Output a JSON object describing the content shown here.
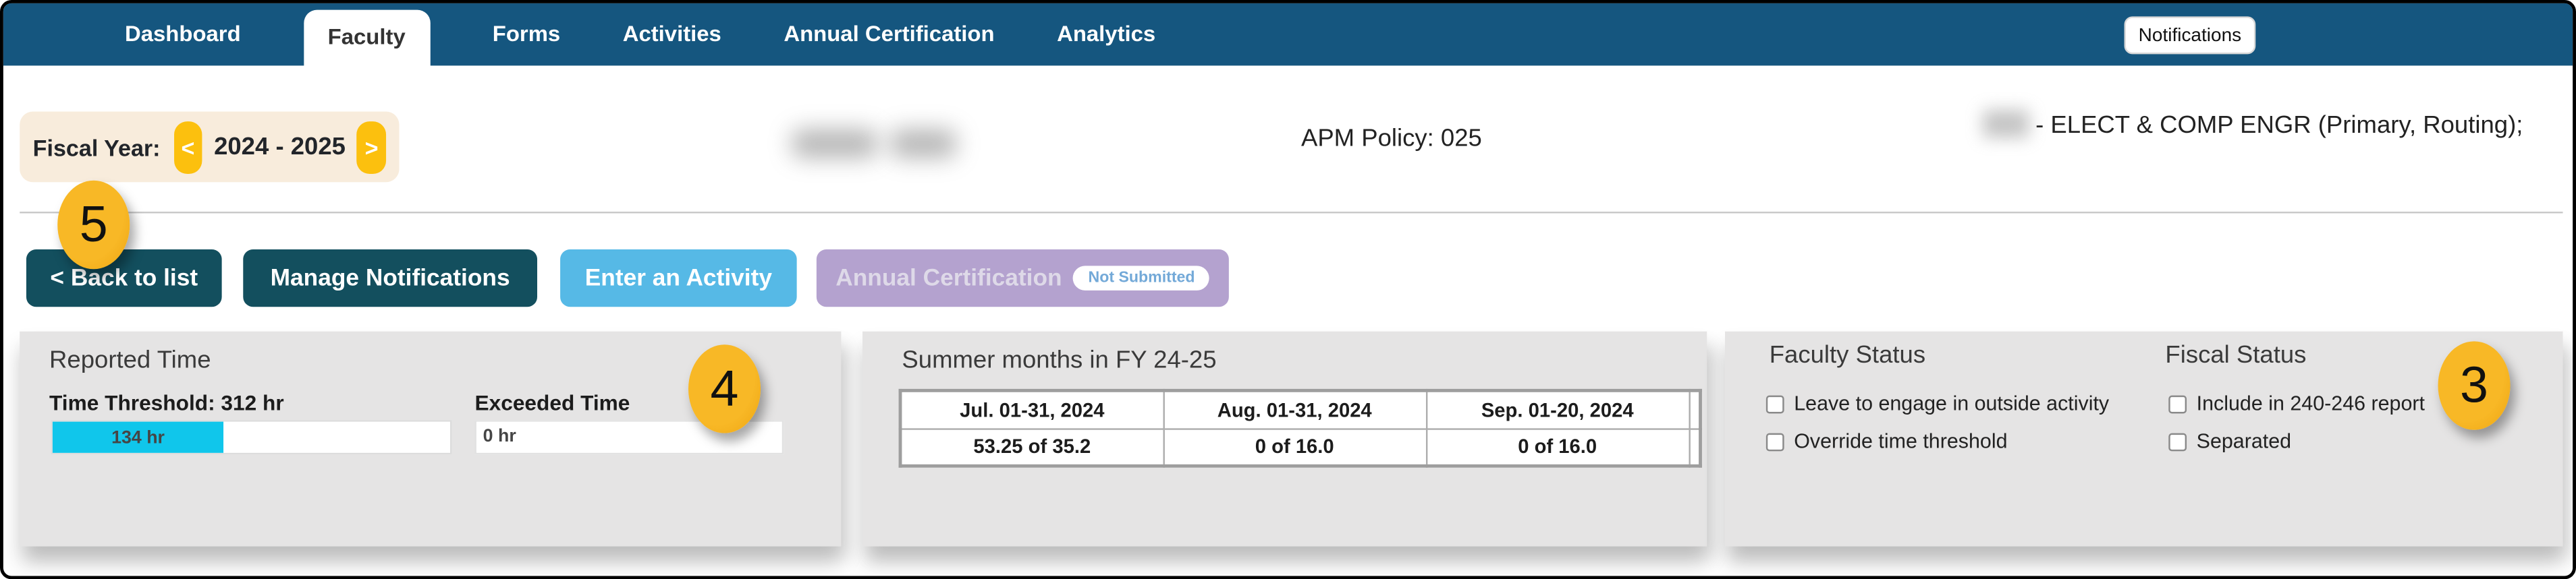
{
  "nav": {
    "tabs": [
      {
        "label": "Dashboard",
        "active": false
      },
      {
        "label": "Faculty",
        "active": true
      },
      {
        "label": "Forms",
        "active": false
      },
      {
        "label": "Activities",
        "active": false
      },
      {
        "label": "Annual Certification",
        "active": false
      },
      {
        "label": "Analytics",
        "active": false
      }
    ],
    "notifications_label": "Notifications"
  },
  "header": {
    "fiscal_year_label": "Fiscal Year:",
    "fiscal_year_prev": "<",
    "fiscal_year_value": "2024 - 2025",
    "fiscal_year_next": ">",
    "name_redacted": true,
    "apm_policy": "APM Policy: 025",
    "department_redacted_prefix": true,
    "department": "- ELECT & COMP ENGR (Primary, Routing);"
  },
  "actions": {
    "back_label": "< Back to list",
    "manage_notifications_label": "Manage Notifications",
    "enter_activity_label": "Enter an Activity",
    "annual_certification_label": "Annual Certification",
    "annual_certification_status": "Not Submitted"
  },
  "annotations": {
    "back_button_badge": "5",
    "reported_time_badge": "4",
    "status_panel_badge": "3"
  },
  "reported_time": {
    "title": "Reported Time",
    "threshold_label": "Time Threshold: 312 hr",
    "exceeded_label": "Exceeded Time",
    "bar_value": "134 hr",
    "bar_percent": 43,
    "exceeded_value": "0 hr"
  },
  "summer": {
    "title": "Summer months in FY 24-25",
    "columns": [
      "Jul. 01-31, 2024",
      "Aug. 01-31, 2024",
      "Sep. 01-20, 2024"
    ],
    "values": [
      "53.25 of 35.2",
      "0 of 16.0",
      "0 of 16.0"
    ]
  },
  "status": {
    "faculty_title": "Faculty Status",
    "fiscal_title": "Fiscal Status",
    "faculty_options": [
      {
        "label": "Leave to engage in outside activity",
        "checked": false
      },
      {
        "label": "Override time threshold",
        "checked": false
      }
    ],
    "fiscal_options": [
      {
        "label": "Include in 240-246 report",
        "checked": false
      },
      {
        "label": "Separated",
        "checked": false
      }
    ]
  },
  "colors": {
    "nav_blue": "#15567F",
    "teal_button": "#134F5E",
    "light_blue_button": "#56B9E6",
    "lavender_button": "#B4A2CF",
    "pill_text_blue": "#73A9D8",
    "amber_badge": "#F2A91C",
    "yellow_arrow": "#FCC00E",
    "beige_bar": "#F8ECDC",
    "cyan_bar": "#10C6EB",
    "panel_gray": "#E5E4E4"
  }
}
